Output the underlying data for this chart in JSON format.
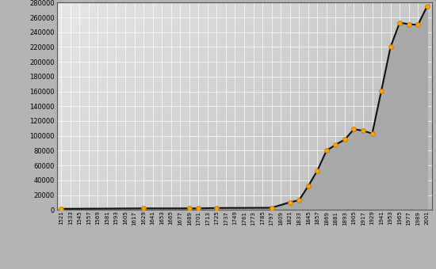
{
  "years": [
    1521,
    1629,
    1689,
    1701,
    1725,
    1797,
    1821,
    1833,
    1845,
    1857,
    1869,
    1881,
    1893,
    1905,
    1917,
    1929,
    1941,
    1953,
    1965,
    1977,
    1989,
    2001
  ],
  "population": [
    1400,
    2000,
    2000,
    2000,
    2500,
    2800,
    10200,
    13000,
    32000,
    53000,
    80000,
    88000,
    95000,
    109000,
    107000,
    103000,
    161000,
    220000,
    253000,
    251000,
    250000,
    275000
  ],
  "yticks": [
    0,
    20000,
    40000,
    60000,
    80000,
    100000,
    120000,
    140000,
    160000,
    180000,
    200000,
    220000,
    240000,
    260000,
    280000
  ],
  "xtick_years": [
    1521,
    1533,
    1545,
    1557,
    1569,
    1581,
    1593,
    1605,
    1617,
    1629,
    1641,
    1653,
    1665,
    1677,
    1689,
    1701,
    1713,
    1725,
    1737,
    1749,
    1761,
    1773,
    1785,
    1797,
    1809,
    1821,
    1833,
    1845,
    1857,
    1869,
    1881,
    1893,
    1905,
    1917,
    1929,
    1941,
    1953,
    1965,
    1977,
    1989,
    2001
  ],
  "xmin": 1515,
  "xmax": 2007,
  "ymin": 0,
  "ymax": 280000,
  "bg_outer": "#b4b4b4",
  "line_color": "#111111",
  "marker_face": "#ffaa00",
  "marker_edge": "#cc7700",
  "line_width": 1.5,
  "marker_size": 16,
  "grid_color": "#ffffff",
  "spine_color": "#555555"
}
